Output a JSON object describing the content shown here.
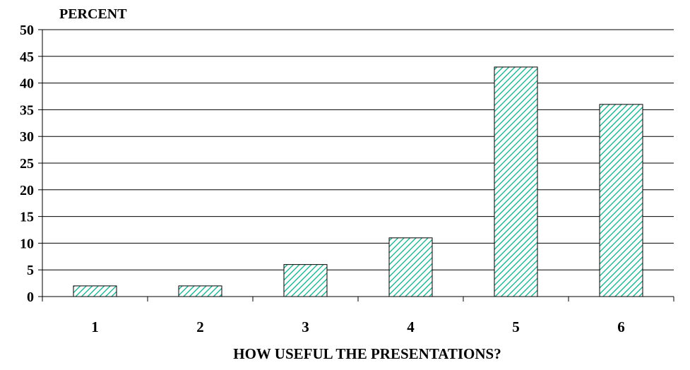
{
  "chart_data": {
    "type": "bar",
    "title": "",
    "ylabel": "PERCENT",
    "xlabel": "HOW USEFUL THE PRESENTATIONS?",
    "categories": [
      "1",
      "2",
      "3",
      "4",
      "5",
      "6"
    ],
    "values": [
      2,
      2,
      6,
      11,
      43,
      36
    ],
    "ylim": [
      0,
      50
    ],
    "yticks": [
      "0",
      "5",
      "10",
      "15",
      "20",
      "25",
      "30",
      "35",
      "40",
      "45",
      "50"
    ],
    "grid": true,
    "legend": "none",
    "colors": {
      "bar_fill": "#ffffff",
      "bar_hatch": "#2db79a",
      "bar_edge": "#000000",
      "grid": "#000000"
    }
  }
}
